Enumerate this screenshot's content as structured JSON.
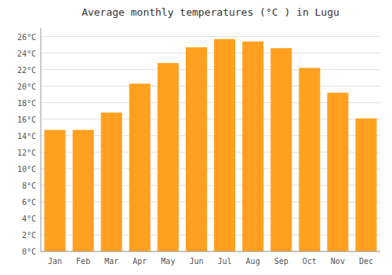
{
  "chart_data": {
    "type": "bar",
    "title": "Average monthly temperatures (°C ) in Lugu",
    "categories": [
      "Jan",
      "Feb",
      "Mar",
      "Apr",
      "May",
      "Jun",
      "Jul",
      "Aug",
      "Sep",
      "Oct",
      "Nov",
      "Dec"
    ],
    "values": [
      14.7,
      14.7,
      16.8,
      20.3,
      22.8,
      24.7,
      25.7,
      25.4,
      24.6,
      22.2,
      19.2,
      16.1
    ],
    "color": "#FFA020",
    "ylim": [
      0,
      27
    ],
    "yticks": [
      {
        "value": 0,
        "label": "0°C"
      },
      {
        "value": 2,
        "label": "2°C"
      },
      {
        "value": 4,
        "label": "4°C"
      },
      {
        "value": 6,
        "label": "6°C"
      },
      {
        "value": 8,
        "label": "8°C"
      },
      {
        "value": 10,
        "label": "10°C"
      },
      {
        "value": 12,
        "label": "12°C"
      },
      {
        "value": 14,
        "label": "14°C"
      },
      {
        "value": 16,
        "label": "16°C"
      },
      {
        "value": 18,
        "label": "18°C"
      },
      {
        "value": 20,
        "label": "20°C"
      },
      {
        "value": 22,
        "label": "22°C"
      },
      {
        "value": 24,
        "label": "24°C"
      },
      {
        "value": 26,
        "label": "26°C"
      }
    ],
    "grid": true
  }
}
